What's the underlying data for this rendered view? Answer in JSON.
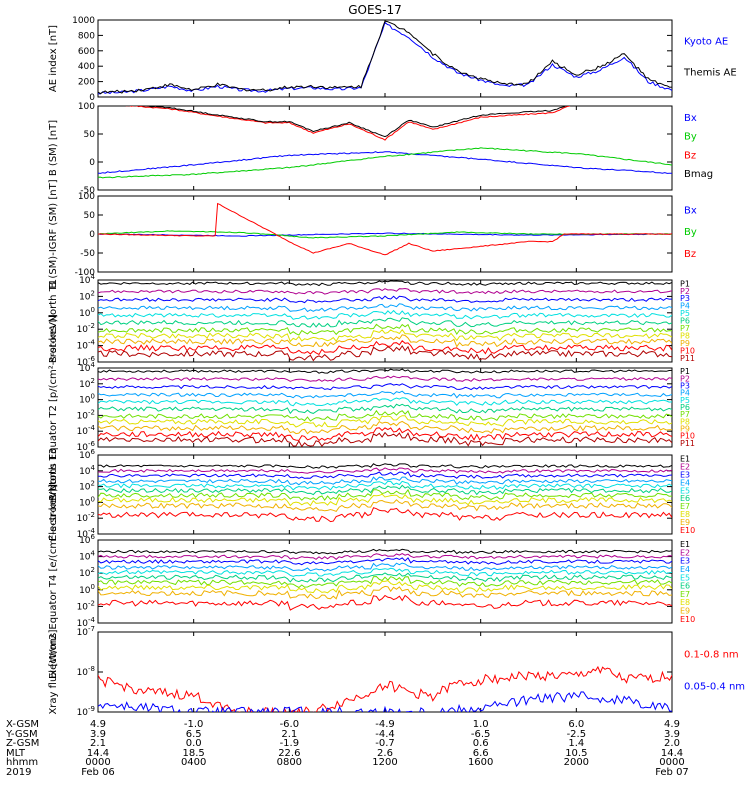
{
  "title": "GOES-17",
  "colors": {
    "blue": "#0000ff",
    "red": "#ff0000",
    "green": "#00cc00",
    "black": "#000000",
    "ladder": [
      "#000000",
      "#b00090",
      "#0000ff",
      "#00a0ff",
      "#00e0e0",
      "#00d080",
      "#70e000",
      "#e0e000",
      "#f0b000",
      "#ff0000",
      "#b00000"
    ]
  },
  "chart_data": [
    {
      "type": "line",
      "panel": "ae_index",
      "ylabel": "AE index [nT]",
      "ylim": [
        0,
        1000
      ],
      "yticks": [
        "0",
        "200",
        "400",
        "600",
        "800",
        "1000"
      ],
      "legend": [
        {
          "name": "Kyoto AE",
          "color": "#0000ff"
        },
        {
          "name": "Themis AE",
          "color": "#000000"
        }
      ],
      "series": [
        {
          "name": "Kyoto AE",
          "x": [
            0,
            1,
            2,
            3,
            4,
            5,
            6,
            7,
            8,
            9,
            10,
            11,
            12,
            13,
            14,
            15,
            16,
            17,
            18,
            19,
            20,
            21,
            22,
            23,
            24
          ],
          "y": [
            50,
            60,
            90,
            140,
            80,
            140,
            90,
            80,
            110,
            120,
            100,
            120,
            950,
            780,
            520,
            320,
            220,
            140,
            160,
            420,
            260,
            350,
            520,
            200,
            90
          ]
        },
        {
          "name": "Themis AE",
          "x": [
            0,
            1,
            2,
            3,
            4,
            5,
            6,
            7,
            8,
            9,
            10,
            11,
            12,
            13,
            14,
            15,
            16,
            17,
            18,
            19,
            20,
            21,
            22,
            23,
            24
          ],
          "y": [
            60,
            70,
            100,
            160,
            90,
            160,
            100,
            90,
            130,
            140,
            120,
            140,
            980,
            850,
            560,
            340,
            240,
            160,
            180,
            460,
            290,
            390,
            560,
            230,
            110
          ]
        }
      ]
    },
    {
      "type": "line",
      "panel": "b_sm",
      "ylabel": "B (SM) [nT]",
      "ylim": [
        -50,
        100
      ],
      "yticks": [
        "-50",
        "0",
        "50",
        "100"
      ],
      "legend": [
        {
          "name": "Bx",
          "color": "#0000ff"
        },
        {
          "name": "By",
          "color": "#00cc00"
        },
        {
          "name": "Bz",
          "color": "#ff0000"
        },
        {
          "name": "Bmag",
          "color": "#000000"
        }
      ],
      "series": [
        {
          "name": "Bx",
          "x": [
            0,
            4,
            8,
            12,
            16,
            20,
            24
          ],
          "y": [
            -20,
            -5,
            12,
            18,
            5,
            -10,
            -20
          ]
        },
        {
          "name": "By",
          "x": [
            0,
            4,
            8,
            12,
            16,
            20,
            24
          ],
          "y": [
            -28,
            -22,
            -10,
            10,
            25,
            15,
            -5
          ]
        },
        {
          "name": "Bz",
          "x": [
            0,
            3,
            5,
            7,
            8,
            9,
            10.5,
            12,
            13,
            14,
            16,
            19,
            20,
            24
          ],
          "y": [
            105,
            95,
            82,
            70,
            70,
            52,
            68,
            40,
            72,
            58,
            80,
            88,
            105,
            103
          ]
        },
        {
          "name": "Bmag",
          "x": [
            0,
            3,
            5,
            7,
            8,
            9,
            10.5,
            12,
            13,
            14,
            16,
            19,
            20,
            24
          ],
          "y": [
            106,
            97,
            84,
            72,
            72,
            55,
            70,
            45,
            75,
            62,
            84,
            92,
            108,
            106
          ]
        }
      ]
    },
    {
      "type": "line",
      "panel": "b_minus_igrf",
      "ylabel": "B (SM)-IGRF (SM) [nT]",
      "ylim": [
        -100,
        100
      ],
      "yticks": [
        "-100",
        "-50",
        "0",
        "50",
        "100"
      ],
      "legend": [
        {
          "name": "Bx",
          "color": "#0000ff"
        },
        {
          "name": "By",
          "color": "#00cc00"
        },
        {
          "name": "Bz",
          "color": "#ff0000"
        }
      ],
      "series": [
        {
          "name": "Bx",
          "x": [
            0,
            6,
            12,
            18,
            24
          ],
          "y": [
            0,
            -5,
            2,
            -3,
            0
          ]
        },
        {
          "name": "By",
          "x": [
            0,
            3,
            6,
            9,
            12,
            15,
            18,
            24
          ],
          "y": [
            0,
            8,
            4,
            -10,
            -5,
            5,
            0,
            0
          ]
        },
        {
          "name": "Bz",
          "x": [
            0,
            4,
            4.9,
            5,
            8,
            9,
            10.5,
            12,
            13,
            14,
            18,
            19,
            19.5,
            24
          ],
          "y": [
            0,
            -5,
            -5,
            80,
            -20,
            -50,
            -25,
            -55,
            -25,
            -45,
            -20,
            -20,
            0,
            0
          ]
        }
      ]
    },
    {
      "type": "line",
      "panel": "protons_north_t1",
      "ylabel": "Protons North T1",
      "ylim_log10": [
        -6,
        4
      ],
      "yticks": [
        "10^-6",
        "10^-4",
        "10^-2",
        "10^0",
        "10^2",
        "10^4"
      ],
      "legend": [
        "P1",
        "P2",
        "P3",
        "P4",
        "P5",
        "P6",
        "P7",
        "P8",
        "P9",
        "P10",
        "P11"
      ],
      "levels_log10": [
        3.6,
        2.6,
        1.6,
        0.6,
        -0.3,
        -1.2,
        -2.1,
        -2.8,
        -3.5,
        -4.3,
        -5.0
      ]
    },
    {
      "type": "line",
      "panel": "protons_equator_t2",
      "ylabel": "Protons Equator T2 [p/(cm²-s-sr-keV)]",
      "ylim_log10": [
        -6,
        4
      ],
      "yticks": [
        "10^-6",
        "10^-4",
        "10^-2",
        "10^0",
        "10^2",
        "10^4"
      ],
      "legend": [
        "P1",
        "P2",
        "P3",
        "P4",
        "P5",
        "P6",
        "P7",
        "P8",
        "P9",
        "P10",
        "P11"
      ],
      "levels_log10": [
        3.6,
        2.6,
        1.6,
        0.6,
        -0.3,
        -1.2,
        -2.1,
        -2.8,
        -3.6,
        -4.4,
        -5.1
      ]
    },
    {
      "type": "line",
      "panel": "electrons_north_t3",
      "ylabel": "Electrons North T3",
      "ylim_log10": [
        -4,
        6
      ],
      "yticks": [
        "10^-4",
        "10^-2",
        "10^0",
        "10^2",
        "10^4",
        "10^6"
      ],
      "legend": [
        "E1",
        "E2",
        "E3",
        "E4",
        "E5",
        "E6",
        "E7",
        "E8",
        "E9",
        "E10"
      ],
      "levels_log10": [
        4.6,
        4.0,
        3.4,
        2.7,
        2.1,
        1.5,
        0.9,
        0.3,
        -0.4,
        -1.6
      ]
    },
    {
      "type": "line",
      "panel": "electrons_equator_t4",
      "ylabel": "Electrons Equator T4 [e/(cm²-s-sr-keV)]",
      "ylim_log10": [
        -4,
        6
      ],
      "yticks": [
        "10^-4",
        "10^-2",
        "10^0",
        "10^2",
        "10^4",
        "10^6"
      ],
      "legend": [
        "E1",
        "E2",
        "E3",
        "E4",
        "E5",
        "E6",
        "E7",
        "E8",
        "E9",
        "E10"
      ],
      "levels_log10": [
        4.6,
        4.0,
        3.4,
        2.7,
        2.1,
        1.5,
        0.9,
        0.3,
        -0.4,
        -1.6
      ]
    },
    {
      "type": "line",
      "panel": "xray_flux",
      "ylabel": "Xray flux [W/m2]",
      "ylim_log10": [
        -9,
        -7
      ],
      "yticks": [
        "10^-9",
        "10^-8",
        "10^-7"
      ],
      "legend": [
        {
          "name": "0.1-0.8 nm",
          "color": "#ff0000"
        },
        {
          "name": "0.05-0.4 nm",
          "color": "#0000ff"
        }
      ],
      "series": [
        {
          "name": "0.1-0.8 nm",
          "x": [
            0,
            2,
            4,
            6,
            9,
            11,
            12,
            13,
            14,
            15,
            16,
            18,
            20,
            21,
            22,
            24
          ],
          "y": [
            -8.2,
            -8.5,
            -8.6,
            -9.0,
            -9.0,
            -8.6,
            -8.3,
            -8.5,
            -8.6,
            -8.3,
            -8.2,
            -8.1,
            -8.1,
            -7.9,
            -8.2,
            -8.1
          ]
        },
        {
          "name": "0.05-0.4 nm",
          "x": [
            0,
            2,
            4,
            6,
            9,
            12,
            14,
            16,
            18,
            20,
            22,
            24
          ],
          "y": [
            -8.8,
            -8.9,
            -9.0,
            -9.0,
            -9.0,
            -9.0,
            -9.0,
            -8.9,
            -8.7,
            -8.6,
            -8.7,
            -8.9
          ]
        }
      ]
    }
  ],
  "x_axis": {
    "rows": [
      {
        "label": "X-GSM",
        "values": [
          "4.9",
          "-1.0",
          "-6.0",
          "-4.9",
          "1.0",
          "6.0",
          "4.9"
        ]
      },
      {
        "label": "Y-GSM",
        "values": [
          "3.9",
          "6.5",
          "2.1",
          "-4.4",
          "-6.5",
          "-2.5",
          "3.9"
        ]
      },
      {
        "label": "Z-GSM",
        "values": [
          "2.1",
          "0.0",
          "-1.9",
          "-0.7",
          "0.6",
          "1.4",
          "2.0"
        ]
      },
      {
        "label": "MLT",
        "values": [
          "14.4",
          "18.5",
          "22.6",
          "2.6",
          "6.6",
          "10.5",
          "14.4"
        ]
      },
      {
        "label": "hhmm",
        "values": [
          "0000",
          "0400",
          "0800",
          "1200",
          "1600",
          "2000",
          "0000"
        ]
      }
    ],
    "year": "2019",
    "start_date": "Feb 06",
    "end_date": "Feb 07"
  }
}
